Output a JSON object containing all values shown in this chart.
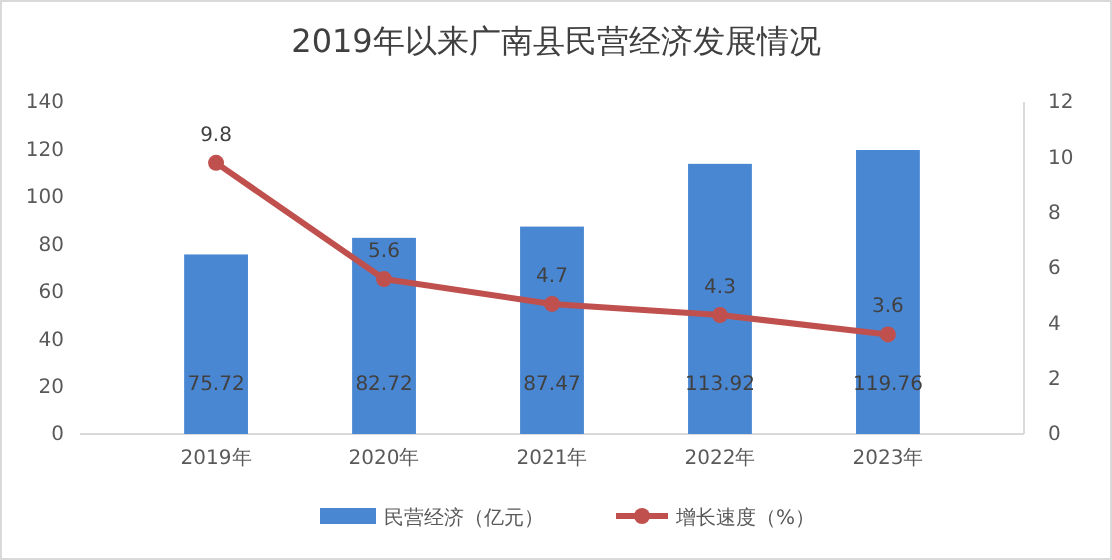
{
  "chart_data": {
    "type": "bar",
    "title": "2019年以来广南县民营经济发展情况",
    "categories": [
      "2019年",
      "2020年",
      "2021年",
      "2022年",
      "2023年"
    ],
    "series": [
      {
        "name": "民营经济（亿元）",
        "color": "#4a87d3",
        "values": [
          75.72,
          82.72,
          87.47,
          113.92,
          119.76
        ]
      },
      {
        "name": "增长速度（%）",
        "type": "line",
        "axis": "y2",
        "color": "#c0504d",
        "values": [
          9.8,
          5.6,
          4.7,
          4.3,
          3.6
        ]
      }
    ],
    "ylim": [
      0,
      140
    ],
    "yticks": [
      0,
      20,
      40,
      60,
      80,
      100,
      120,
      140
    ],
    "y2lim": [
      0,
      12
    ],
    "y2ticks": [
      0,
      2,
      4,
      6,
      8,
      10,
      12
    ],
    "data_labels": true,
    "legend": "bottom",
    "marker": "circle",
    "grid": false
  }
}
